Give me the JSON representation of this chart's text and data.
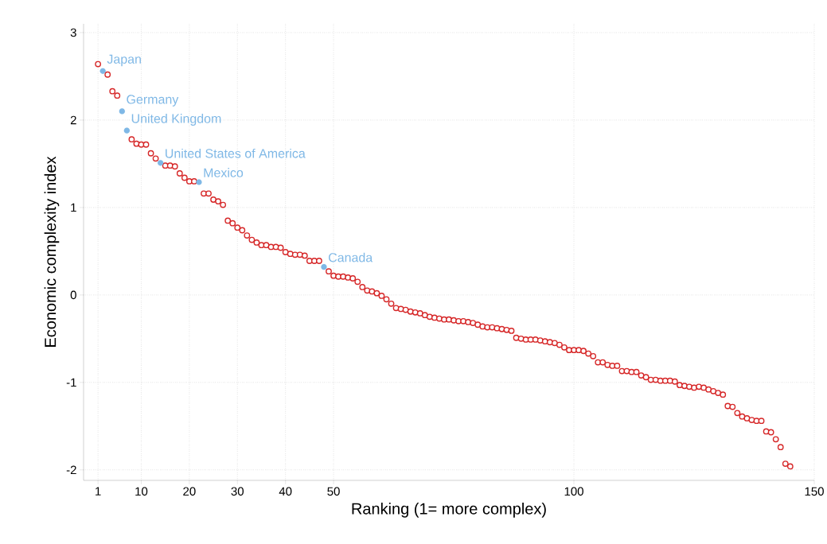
{
  "chart_data": {
    "type": "scatter",
    "xlabel": "Ranking (1= more complex)",
    "ylabel": "Economic complexity index",
    "xlim": [
      -2,
      150
    ],
    "ylim": [
      -2.12,
      3.1
    ],
    "xticks": [
      1,
      10,
      20,
      30,
      40,
      50,
      100,
      150
    ],
    "yticks": [
      -2,
      -1,
      0,
      1,
      2,
      3
    ],
    "grid": true,
    "marker": "circle",
    "series": [
      {
        "color": "#d62728",
        "x": [
          1,
          3,
          4,
          5,
          8,
          9,
          10,
          11,
          12,
          13,
          15,
          16,
          17,
          18,
          19,
          20,
          21,
          23,
          24,
          25,
          26,
          27,
          28,
          29,
          30,
          31,
          32,
          33,
          34,
          35,
          36,
          37,
          38,
          39,
          40,
          41,
          42,
          43,
          44,
          45,
          46,
          47,
          49,
          50,
          51,
          52,
          53,
          54,
          55,
          56,
          57,
          58,
          59,
          60,
          61,
          62,
          63,
          64,
          65,
          66,
          67,
          68,
          69,
          70,
          71,
          72,
          73,
          74,
          75,
          76,
          77,
          78,
          79,
          80,
          81,
          82,
          83,
          84,
          85,
          86,
          87,
          88,
          89,
          90,
          91,
          92,
          93,
          94,
          95,
          96,
          97,
          98,
          99,
          100,
          101,
          102,
          103,
          104,
          105,
          106,
          107,
          108,
          109,
          110,
          111,
          112,
          113,
          114,
          115,
          116,
          117,
          118,
          119,
          120,
          121,
          122,
          123,
          124,
          125,
          126,
          127,
          128,
          129,
          130,
          131,
          132,
          133,
          134,
          135,
          136,
          137,
          138,
          139,
          140,
          141,
          142,
          143,
          144,
          145
        ],
        "values": [
          2.64,
          2.52,
          2.33,
          2.28,
          1.78,
          1.73,
          1.72,
          1.72,
          1.62,
          1.56,
          1.48,
          1.48,
          1.47,
          1.39,
          1.34,
          1.3,
          1.3,
          1.16,
          1.16,
          1.09,
          1.07,
          1.03,
          0.85,
          0.82,
          0.77,
          0.74,
          0.68,
          0.63,
          0.6,
          0.57,
          0.57,
          0.55,
          0.55,
          0.54,
          0.49,
          0.47,
          0.46,
          0.46,
          0.45,
          0.39,
          0.39,
          0.39,
          0.27,
          0.22,
          0.21,
          0.21,
          0.2,
          0.19,
          0.15,
          0.09,
          0.05,
          0.04,
          0.02,
          -0.01,
          -0.05,
          -0.1,
          -0.15,
          -0.16,
          -0.17,
          -0.19,
          -0.2,
          -0.21,
          -0.23,
          -0.25,
          -0.26,
          -0.27,
          -0.28,
          -0.28,
          -0.29,
          -0.3,
          -0.3,
          -0.31,
          -0.32,
          -0.34,
          -0.36,
          -0.37,
          -0.37,
          -0.38,
          -0.39,
          -0.4,
          -0.41,
          -0.49,
          -0.5,
          -0.51,
          -0.51,
          -0.51,
          -0.52,
          -0.53,
          -0.54,
          -0.55,
          -0.57,
          -0.6,
          -0.63,
          -0.63,
          -0.63,
          -0.64,
          -0.67,
          -0.7,
          -0.77,
          -0.77,
          -0.8,
          -0.81,
          -0.81,
          -0.87,
          -0.87,
          -0.88,
          -0.88,
          -0.92,
          -0.94,
          -0.97,
          -0.97,
          -0.98,
          -0.98,
          -0.98,
          -0.99,
          -1.03,
          -1.04,
          -1.05,
          -1.06,
          -1.05,
          -1.06,
          -1.08,
          -1.1,
          -1.12,
          -1.14,
          -1.27,
          -1.28,
          -1.35,
          -1.39,
          -1.41,
          -1.43,
          -1.44,
          -1.44,
          -1.56,
          -1.57,
          -1.65,
          -1.74,
          -1.93,
          -1.96
        ]
      },
      {
        "color": "#7fb8e6",
        "x": [
          2,
          6,
          7,
          14,
          22,
          48
        ],
        "values": [
          2.56,
          2.1,
          1.88,
          1.51,
          1.29,
          0.32
        ]
      }
    ],
    "annotations": [
      {
        "text": "Japan",
        "x": 2,
        "y": 2.56
      },
      {
        "text": "Germany",
        "x": 6,
        "y": 2.1
      },
      {
        "text": "United Kingdom",
        "x": 7,
        "y": 1.88
      },
      {
        "text": "United States of America",
        "x": 14,
        "y": 1.51
      },
      {
        "text": "Mexico",
        "x": 22,
        "y": 1.29
      },
      {
        "text": "Canada",
        "x": 48,
        "y": 0.32
      }
    ]
  }
}
